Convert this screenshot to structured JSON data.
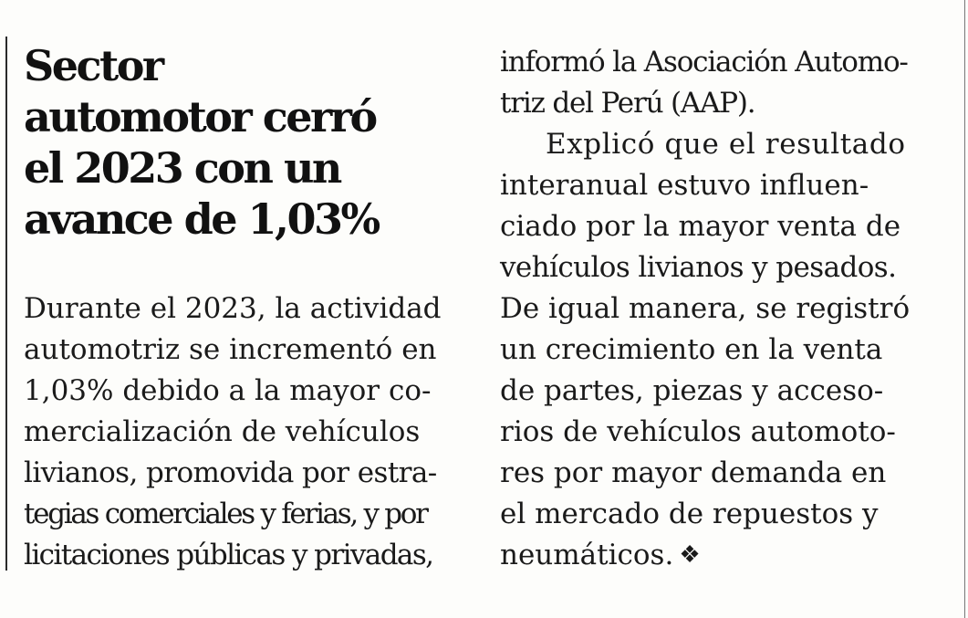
{
  "headline": {
    "lines": [
      "Sector",
      "automotor cerró",
      "el 2023 con un",
      "avance de 1,03%"
    ]
  },
  "body_left": {
    "lines": [
      "Durante el 2023, la actividad",
      "automotriz se incrementó en",
      "1,03% debido a la mayor co-",
      "mercialización de vehículos",
      "livianos, promovida por estra-",
      "tegias comerciales y ferias, y por",
      "licitaciones públicas y privadas,"
    ]
  },
  "body_right_top": {
    "lines": [
      "informó la Asociación Automo-",
      "triz del Perú (AAP)."
    ]
  },
  "body_right": {
    "lines": [
      "Explicó que el resultado",
      "interanual estuvo influen-",
      "ciado por la mayor venta de",
      "vehículos livianos y pesados.",
      "De igual manera, se registró",
      "un crecimiento en la venta",
      "de partes, piezas y acceso-",
      "rios de vehículos automoto-",
      "res por mayor demanda en",
      "el mercado de repuestos y",
      "neumáticos."
    ],
    "end_mark": "❖"
  }
}
